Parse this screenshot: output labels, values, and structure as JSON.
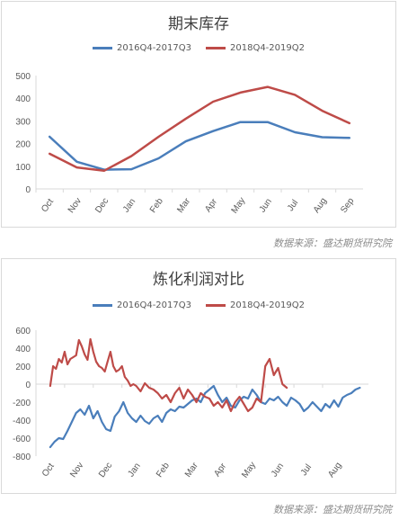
{
  "colors": {
    "series1": "#4a7ebb",
    "series2": "#be4b48",
    "axis": "#d9d9d9",
    "tick_text": "#595959"
  },
  "source_text_1": "数据来源：盛达期货研究院",
  "source_text_2": "数据来源：盛达期货研究院",
  "chart_data": [
    {
      "type": "line",
      "title": "期末库存",
      "categories": [
        "Oct",
        "Nov",
        "Dec",
        "Jan",
        "Feb",
        "Mar",
        "Apr",
        "May",
        "Jun",
        "Jul",
        "Aug",
        "Sep"
      ],
      "ylim": [
        0,
        500
      ],
      "yticks": [
        0,
        100,
        200,
        300,
        400,
        500
      ],
      "grid": false,
      "legend": "top",
      "series": [
        {
          "name": "2016Q4-2017Q3",
          "values": [
            230,
            120,
            85,
            87,
            135,
            210,
            255,
            295,
            295,
            250,
            228,
            225
          ]
        },
        {
          "name": "2018Q4-2019Q2",
          "values": [
            155,
            95,
            80,
            145,
            230,
            310,
            385,
            425,
            450,
            415,
            345,
            290
          ]
        }
      ]
    },
    {
      "type": "line",
      "title": "炼化利润对比",
      "categories": [
        "Oct",
        "Nov",
        "Dec",
        "Jan",
        "Feb",
        "Mar",
        "Apr",
        "May",
        "Jun",
        "Jul",
        "Aug"
      ],
      "ylim": [
        -800,
        600
      ],
      "yticks": [
        -800,
        -600,
        -400,
        -200,
        0,
        200,
        400,
        600
      ],
      "grid": false,
      "legend": "top",
      "series": [
        {
          "name": "2016Q4-2017Q3",
          "x": [
            0,
            0.15,
            0.3,
            0.45,
            0.6,
            0.75,
            0.9,
            1.05,
            1.2,
            1.35,
            1.5,
            1.65,
            1.8,
            1.95,
            2.1,
            2.25,
            2.4,
            2.55,
            2.7,
            2.85,
            3.0,
            3.15,
            3.3,
            3.45,
            3.6,
            3.75,
            3.9,
            4.05,
            4.2,
            4.35,
            4.5,
            4.65,
            4.8,
            4.95,
            5.1,
            5.25,
            5.4,
            5.55,
            5.7,
            5.85,
            6.0,
            6.15,
            6.3,
            6.45,
            6.6,
            6.75,
            6.9,
            7.05,
            7.2,
            7.35,
            7.5,
            7.65,
            7.8,
            7.95,
            8.1,
            8.25,
            8.4,
            8.55,
            8.7,
            8.85,
            9.0,
            9.15,
            9.3,
            9.45,
            9.6,
            9.75,
            9.9,
            10.05,
            10.2,
            10.35,
            10.5,
            10.65,
            10.8
          ],
          "values": [
            -700,
            -640,
            -600,
            -610,
            -520,
            -420,
            -320,
            -280,
            -340,
            -240,
            -380,
            -300,
            -420,
            -500,
            -520,
            -360,
            -300,
            -200,
            -320,
            -380,
            -420,
            -350,
            -410,
            -440,
            -380,
            -350,
            -420,
            -320,
            -280,
            -300,
            -250,
            -260,
            -220,
            -180,
            -160,
            -200,
            -100,
            -60,
            -20,
            -120,
            -200,
            -150,
            -240,
            -260,
            -180,
            -140,
            -160,
            -60,
            -120,
            -200,
            -220,
            -160,
            -180,
            -140,
            -200,
            -240,
            -150,
            -180,
            -220,
            -300,
            -260,
            -200,
            -250,
            -300,
            -220,
            -260,
            -180,
            -250,
            -150,
            -120,
            -100,
            -60,
            -40
          ]
        },
        {
          "name": "2018Q4-2019Q2",
          "x": [
            0,
            0.1,
            0.2,
            0.3,
            0.4,
            0.5,
            0.6,
            0.7,
            0.8,
            0.9,
            1.0,
            1.1,
            1.2,
            1.3,
            1.4,
            1.5,
            1.6,
            1.7,
            1.8,
            1.9,
            2.0,
            2.1,
            2.2,
            2.3,
            2.4,
            2.5,
            2.6,
            2.7,
            2.8,
            2.9,
            3.0,
            3.15,
            3.3,
            3.45,
            3.6,
            3.75,
            3.9,
            4.05,
            4.2,
            4.35,
            4.5,
            4.65,
            4.8,
            4.95,
            5.1,
            5.25,
            5.4,
            5.55,
            5.7,
            5.85,
            6.0,
            6.15,
            6.3,
            6.45,
            6.6,
            6.75,
            6.9,
            7.05,
            7.2,
            7.35,
            7.5,
            7.65,
            7.8,
            7.95,
            8.1,
            8.25
          ],
          "values": [
            -20,
            200,
            170,
            280,
            240,
            360,
            220,
            280,
            300,
            320,
            490,
            420,
            330,
            270,
            500,
            360,
            250,
            200,
            180,
            140,
            250,
            360,
            200,
            140,
            160,
            200,
            80,
            40,
            -20,
            0,
            -20,
            -80,
            10,
            -40,
            -60,
            -100,
            -160,
            -120,
            -200,
            -100,
            -40,
            -160,
            -60,
            -120,
            -200,
            -100,
            -140,
            -160,
            -240,
            -200,
            -260,
            -180,
            -300,
            -200,
            -140,
            -220,
            -300,
            -260,
            -160,
            -200,
            200,
            280,
            100,
            180,
            0,
            -40
          ]
        }
      ]
    }
  ]
}
